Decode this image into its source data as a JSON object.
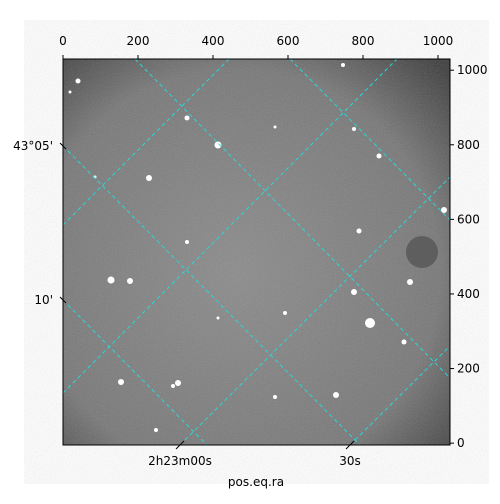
{
  "chart_data": {
    "type": "image",
    "xlabel": "pos.eq.ra",
    "xlim": [
      0,
      1032
    ],
    "xticks": [
      0,
      200,
      400,
      600,
      800,
      1000
    ],
    "ylim": [
      -5,
      1030
    ],
    "yticks": [
      0,
      200,
      400,
      600,
      800,
      1000
    ],
    "ra_ticks": [
      "2h23m00s",
      "30s"
    ],
    "dec_ticks": [
      "43°05'",
      "10'"
    ],
    "grid_color": "#2bd6d6"
  }
}
